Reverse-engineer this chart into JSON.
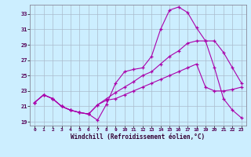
{
  "xlabel": "Windchill (Refroidissement éolien,°C)",
  "bg_color": "#cceeff",
  "line_color": "#aa00aa",
  "grid_color": "#aabbcc",
  "xlim": [
    -0.5,
    23.5
  ],
  "ylim": [
    18.5,
    34.2
  ],
  "yticks": [
    19,
    21,
    23,
    25,
    27,
    29,
    31,
    33
  ],
  "xticks": [
    0,
    1,
    2,
    3,
    4,
    5,
    6,
    7,
    8,
    9,
    10,
    11,
    12,
    13,
    14,
    15,
    16,
    17,
    18,
    19,
    20,
    21,
    22,
    23
  ],
  "line1_x": [
    0,
    1,
    2,
    3,
    4,
    5,
    6,
    7,
    8,
    9,
    10,
    11,
    12,
    13,
    14,
    15,
    16,
    17,
    18,
    19,
    20,
    21,
    22,
    23
  ],
  "line1_y": [
    21.5,
    22.5,
    22.0,
    21.0,
    20.5,
    20.2,
    20.0,
    19.2,
    21.3,
    24.0,
    25.5,
    25.8,
    26.0,
    27.5,
    31.0,
    33.5,
    33.9,
    33.2,
    31.2,
    29.5,
    26.0,
    22.0,
    20.5,
    19.5
  ],
  "line2_x": [
    0,
    1,
    2,
    3,
    4,
    5,
    6,
    7,
    8,
    9,
    10,
    11,
    12,
    13,
    14,
    15,
    16,
    17,
    18,
    19,
    20,
    21,
    22,
    23
  ],
  "line2_y": [
    21.5,
    22.5,
    22.0,
    21.0,
    20.5,
    20.2,
    20.0,
    21.2,
    22.0,
    22.8,
    23.5,
    24.2,
    25.0,
    25.5,
    26.5,
    27.5,
    28.2,
    29.2,
    29.5,
    29.5,
    29.5,
    28.0,
    26.0,
    24.0
  ],
  "line3_x": [
    0,
    1,
    2,
    3,
    4,
    5,
    6,
    7,
    8,
    9,
    10,
    11,
    12,
    13,
    14,
    15,
    16,
    17,
    18,
    19,
    20,
    21,
    22,
    23
  ],
  "line3_y": [
    21.5,
    22.5,
    22.0,
    21.0,
    20.5,
    20.2,
    20.0,
    21.2,
    21.8,
    22.0,
    22.5,
    23.0,
    23.5,
    24.0,
    24.5,
    25.0,
    25.5,
    26.0,
    26.5,
    23.5,
    23.0,
    23.0,
    23.2,
    23.5
  ]
}
